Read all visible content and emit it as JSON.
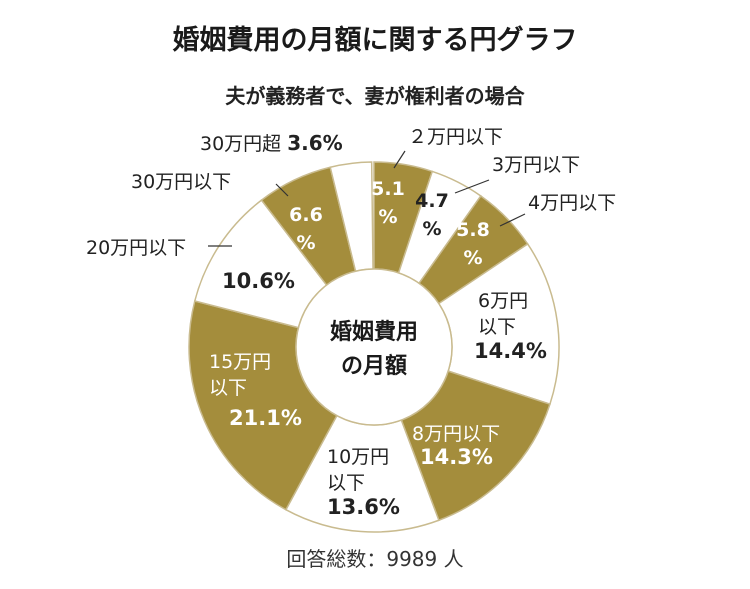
{
  "header": {
    "title": "婚姻費用の月額に関する円グラフ",
    "subtitle": "夫が義務者で、妻が権利者の場合"
  },
  "footer": {
    "note": "回答総数：9989 人"
  },
  "colors": {
    "gold": "#a48d3c",
    "white": "#ffffff",
    "stroke": "#c9bb8f",
    "text_dark": "#222222",
    "text_light": "#ffffff"
  },
  "chart_data": {
    "type": "pie",
    "style": "donut",
    "center_label": [
      "婚姻費用",
      "の月額"
    ],
    "slices": [
      {
        "category": "２万円以下",
        "value": 5.1,
        "value_label": "5.1%",
        "fill": "gold"
      },
      {
        "category": "3万円以下",
        "value": 4.7,
        "value_label": "4.7%",
        "fill": "white"
      },
      {
        "category": "4万円以下",
        "value": 5.8,
        "value_label": "5.8%",
        "fill": "gold"
      },
      {
        "category": "6万円以下",
        "value": 14.4,
        "value_label": "14.4%",
        "fill": "white"
      },
      {
        "category": "8万円以下",
        "value": 14.3,
        "value_label": "14.3%",
        "fill": "gold"
      },
      {
        "category": "10万円以下",
        "value": 13.6,
        "value_label": "13.6%",
        "fill": "white"
      },
      {
        "category": "15万円以下",
        "value": 21.1,
        "value_label": "21.1%",
        "fill": "gold"
      },
      {
        "category": "20万円以下",
        "value": 10.6,
        "value_label": "10.6%",
        "fill": "white"
      },
      {
        "category": "30万円以下",
        "value": 6.6,
        "value_label": "6.6%",
        "fill": "gold"
      },
      {
        "category": "30万円超",
        "value": 3.6,
        "value_label": "3.6%",
        "fill": "white"
      }
    ]
  }
}
